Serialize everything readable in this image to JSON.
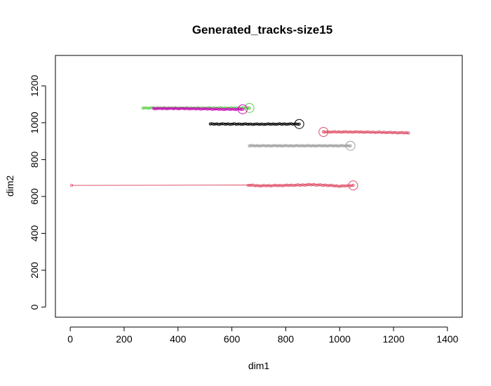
{
  "chart_data": {
    "type": "scatter",
    "title": "Generated_tracks-size15",
    "xlabel": "dim1",
    "ylabel": "dim2",
    "xlim": [
      -55,
      1455
    ],
    "ylim": [
      -55,
      1365
    ],
    "xticks": [
      0,
      200,
      400,
      600,
      800,
      1000,
      1200,
      1400
    ],
    "yticks": [
      0,
      200,
      400,
      600,
      800,
      1000,
      1200
    ],
    "grid": false,
    "legend": "none",
    "series": [
      {
        "color": "#DF536B",
        "start": [
          5,
          660
        ],
        "path": [
          [
            5,
            660
          ],
          [
            660,
            662
          ],
          [
            700,
            658
          ],
          [
            800,
            660
          ],
          [
            900,
            664
          ],
          [
            960,
            660
          ],
          [
            1000,
            656
          ],
          [
            1050,
            660
          ]
        ],
        "end": [
          1050,
          660
        ],
        "dense_range": [
          660,
          1050
        ]
      },
      {
        "color": "#000000",
        "start": [
          520,
          993
        ],
        "path": [
          [
            520,
            993
          ],
          [
            600,
            993
          ],
          [
            700,
            992
          ],
          [
            800,
            993
          ],
          [
            850,
            993
          ]
        ],
        "end": [
          850,
          993
        ],
        "dense_range": [
          520,
          850
        ]
      },
      {
        "color": "#61D04F",
        "start": [
          270,
          1080
        ],
        "path": [
          [
            270,
            1080
          ],
          [
            350,
            1080
          ],
          [
            450,
            1080
          ],
          [
            550,
            1080
          ],
          [
            620,
            1080
          ],
          [
            665,
            1080
          ]
        ],
        "end": [
          665,
          1080
        ],
        "dense_range": [
          270,
          665
        ]
      },
      {
        "color": "#CD0BBC",
        "start": [
          310,
          1077
        ],
        "path": [
          [
            310,
            1077
          ],
          [
            400,
            1077
          ],
          [
            500,
            1075
          ],
          [
            560,
            1073
          ],
          [
            640,
            1073
          ]
        ],
        "end": [
          640,
          1073
        ],
        "dense_range": [
          310,
          640
        ]
      },
      {
        "color": "#9E9E9E",
        "start": [
          665,
          875
        ],
        "path": [
          [
            665,
            875
          ],
          [
            750,
            875
          ],
          [
            850,
            875
          ],
          [
            950,
            875
          ],
          [
            1040,
            875
          ]
        ],
        "end": [
          1040,
          875
        ],
        "dense_range": [
          665,
          1040
        ]
      },
      {
        "color": "#DF536B",
        "start": [
          1255,
          945
        ],
        "path": [
          [
            1255,
            945
          ],
          [
            1150,
            948
          ],
          [
            1050,
            950
          ],
          [
            1000,
            950
          ],
          [
            940,
            950
          ]
        ],
        "end": [
          940,
          950
        ],
        "dense_range": [
          940,
          1255
        ]
      }
    ]
  }
}
